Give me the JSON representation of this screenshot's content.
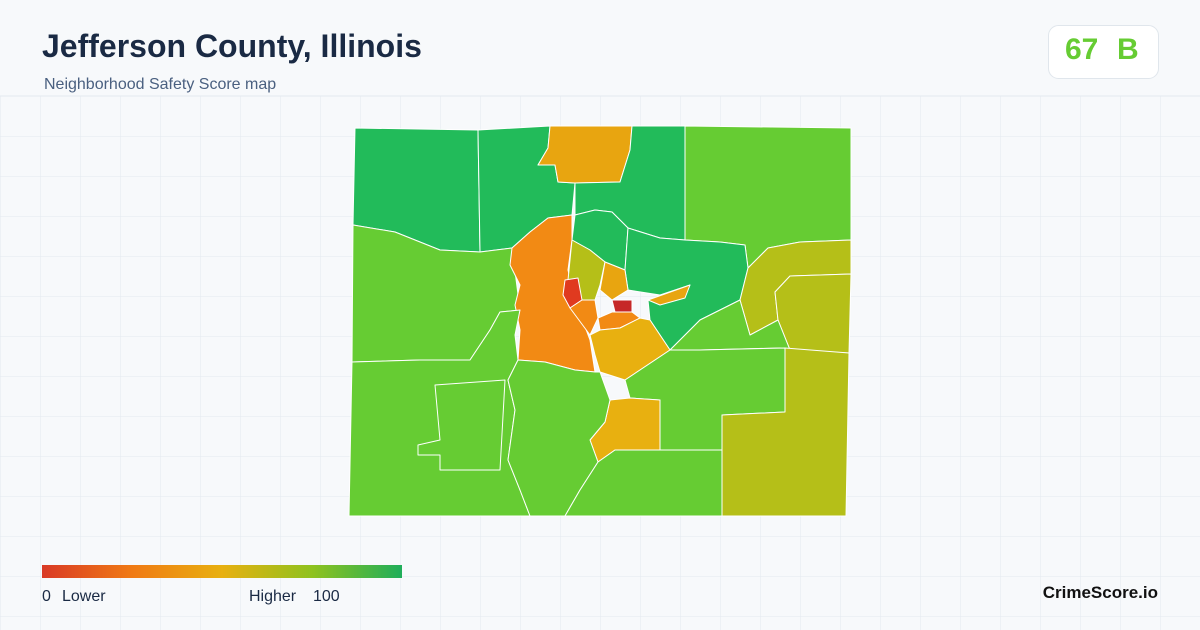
{
  "header": {
    "title": "Jefferson County, Illinois",
    "subtitle": "Neighborhood Safety Score map"
  },
  "score": {
    "value": 67,
    "grade": "B"
  },
  "legend": {
    "min": 0,
    "min_label": "Lower",
    "max_label": "Higher",
    "max": 100
  },
  "brand": "CrimeScore.io"
}
